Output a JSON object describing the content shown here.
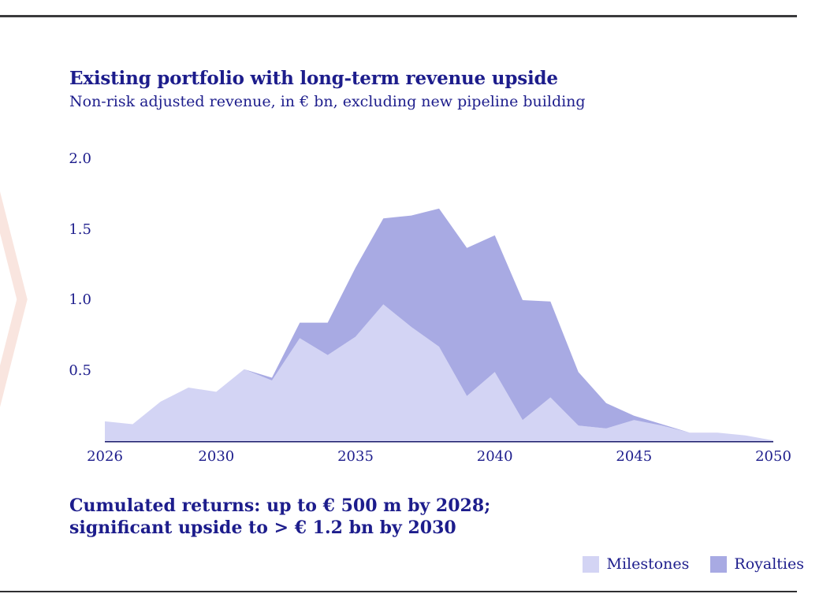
{
  "slide": {
    "title": "Existing portfolio with long-term revenue upside",
    "subtitle": "Non-risk adjusted revenue, in € bn, excluding new pipeline building",
    "callout_line1": "Cumulated returns: up to € 500 m by 2028;",
    "callout_line2": "significant upside to > € 1.2 bn by 2030"
  },
  "chart_data": {
    "type": "area",
    "stacked": true,
    "title": "Existing portfolio with long-term revenue upside",
    "subtitle": "Non-risk adjusted revenue, in € bn, excluding new pipeline building",
    "x": [
      2026,
      2027,
      2028,
      2029,
      2030,
      2031,
      2032,
      2033,
      2034,
      2035,
      2036,
      2037,
      2038,
      2039,
      2040,
      2041,
      2042,
      2043,
      2044,
      2045,
      2046,
      2047,
      2048,
      2049,
      2050
    ],
    "series": [
      {
        "name": "Milestones",
        "color": "#d3d4f4",
        "values": [
          0.14,
          0.12,
          0.28,
          0.38,
          0.35,
          0.51,
          0.43,
          0.73,
          0.61,
          0.74,
          0.97,
          0.81,
          0.67,
          0.32,
          0.49,
          0.15,
          0.31,
          0.11,
          0.09,
          0.15,
          0.11,
          0.06,
          0.06,
          0.04,
          0.005
        ]
      },
      {
        "name": "Royalties",
        "color": "#a8aae3",
        "values": [
          0,
          0,
          0,
          0,
          0,
          0,
          0.02,
          0.11,
          0.23,
          0.49,
          0.61,
          0.79,
          0.98,
          1.05,
          0.97,
          0.85,
          0.68,
          0.38,
          0.18,
          0.03,
          0.01,
          0,
          0,
          0,
          0
        ]
      }
    ],
    "xlabel": "",
    "ylabel": "",
    "xlim": [
      2026,
      2050
    ],
    "ylim": [
      0,
      2.0
    ],
    "x_ticks": [
      {
        "value": 2026,
        "label": "2026"
      },
      {
        "value": 2030,
        "label": "2030"
      },
      {
        "value": 2035,
        "label": "2035"
      },
      {
        "value": 2040,
        "label": "2040"
      },
      {
        "value": 2045,
        "label": "2045"
      },
      {
        "value": 2050,
        "label": "2050"
      }
    ],
    "y_ticks": [
      {
        "value": 0.5,
        "label": "0.5"
      },
      {
        "value": 1.0,
        "label": "1.0"
      },
      {
        "value": 1.5,
        "label": "1.5"
      },
      {
        "value": 2.0,
        "label": "2.0"
      }
    ],
    "grid": false,
    "legend_position": "bottom-right"
  },
  "legend": {
    "items": [
      {
        "label": "Milestones",
        "color": "#d3d4f4"
      },
      {
        "label": "Royalties",
        "color": "#a8aae3"
      }
    ]
  },
  "colors": {
    "text_navy": "#1d1d8c",
    "axis_line": "#1b1b6b",
    "milestones_fill": "#d3d4f4",
    "royalties_fill": "#a8aae3",
    "rule_dark": "#3a3a3c",
    "chevron_pink": "#f9e5df"
  }
}
